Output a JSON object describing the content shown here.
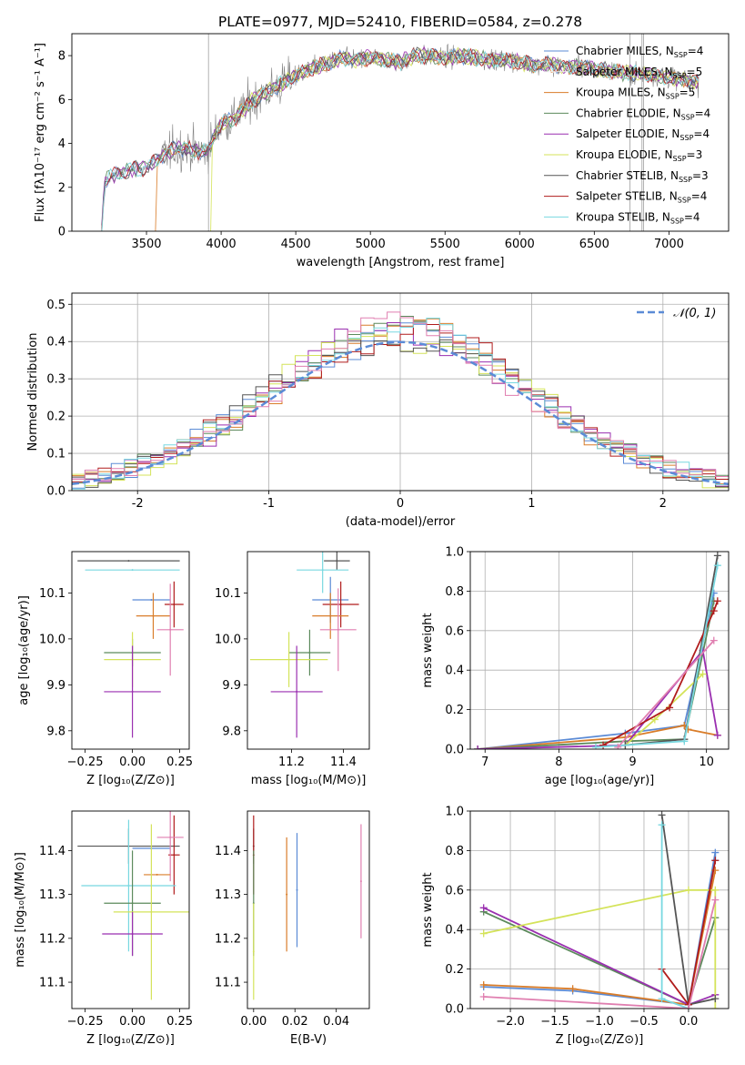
{
  "figure_title": "PLATE=0977, MJD=52410, FIBERID=0584, z=0.278",
  "colors": {
    "Chabrier MILES": "#5b8bd6",
    "Salpeter MILES": "#f0f0f0",
    "Kroupa MILES": "#d97d2a",
    "Chabrier ELODIE": "#5c8a5c",
    "Salpeter ELODIE": "#9a2fb0",
    "Kroupa ELODIE": "#d4e35a",
    "Chabrier STELIB": "#555555",
    "Salpeter STELIB": "#b01c1c",
    "Kroupa STELIB": "#78d8e0",
    "pink": "#e07fb0",
    "data_spectrum": "#808080",
    "normal_curve": "#5b8bd6"
  },
  "chart_data": [
    {
      "id": "spectrum",
      "type": "line",
      "title": "PLATE=0977, MJD=52410, FIBERID=0584, z=0.278",
      "xlabel": "wavelength [Angstrom, rest frame]",
      "ylabel": "Flux [fλ10⁻¹⁷ erg cm⁻² s⁻¹ A⁻¹]",
      "xlim": [
        3000,
        7400
      ],
      "ylim": [
        0,
        9
      ],
      "xticks": [
        3500,
        4000,
        4500,
        5000,
        5500,
        6000,
        6500,
        7000
      ],
      "yticks": [
        0,
        2,
        4,
        6,
        8
      ],
      "legend_position": "top-right",
      "legend": [
        {
          "label": "Chabrier MILES, N",
          "sub": "SSP",
          "tail": "=4",
          "color": "#5b8bd6"
        },
        {
          "label": "Salpeter MILES, N",
          "sub": "SSP",
          "tail": "=5",
          "color": "#f0f0f0"
        },
        {
          "label": "Kroupa MILES, N",
          "sub": "SSP",
          "tail": "=5",
          "color": "#d97d2a"
        },
        {
          "label": "Chabrier ELODIE, N",
          "sub": "SSP",
          "tail": "=4",
          "color": "#5c8a5c"
        },
        {
          "label": "Salpeter ELODIE, N",
          "sub": "SSP",
          "tail": "=4",
          "color": "#9a2fb0"
        },
        {
          "label": "Kroupa ELODIE, N",
          "sub": "SSP",
          "tail": "=3",
          "color": "#d4e35a"
        },
        {
          "label": "Chabrier STELIB, N",
          "sub": "SSP",
          "tail": "=3",
          "color": "#555555"
        },
        {
          "label": "Salpeter STELIB, N",
          "sub": "SSP",
          "tail": "=4",
          "color": "#b01c1c"
        },
        {
          "label": "Kroupa STELIB, N",
          "sub": "SSP",
          "tail": "=4",
          "color": "#78d8e0"
        }
      ],
      "continuum": [
        [
          3200,
          0
        ],
        [
          3220,
          2.3
        ],
        [
          3300,
          2.6
        ],
        [
          3400,
          2.8
        ],
        [
          3500,
          2.9
        ],
        [
          3600,
          3.4
        ],
        [
          3700,
          3.8
        ],
        [
          3800,
          3.7
        ],
        [
          3900,
          3.6
        ],
        [
          4000,
          4.9
        ],
        [
          4100,
          5.2
        ],
        [
          4200,
          5.9
        ],
        [
          4300,
          6.3
        ],
        [
          4400,
          6.7
        ],
        [
          4500,
          7.1
        ],
        [
          4600,
          7.4
        ],
        [
          4700,
          7.6
        ],
        [
          4800,
          7.9
        ],
        [
          4900,
          7.8
        ],
        [
          5000,
          7.9
        ],
        [
          5100,
          7.8
        ],
        [
          5200,
          7.7
        ],
        [
          5300,
          8.0
        ],
        [
          5400,
          8.0
        ],
        [
          5500,
          7.9
        ],
        [
          5600,
          8.0
        ],
        [
          5700,
          7.9
        ],
        [
          5800,
          7.8
        ],
        [
          5900,
          7.8
        ],
        [
          6000,
          7.7
        ],
        [
          6100,
          7.6
        ],
        [
          6200,
          7.6
        ],
        [
          6300,
          7.5
        ],
        [
          6400,
          7.5
        ],
        [
          6500,
          7.4
        ],
        [
          6600,
          7.3
        ],
        [
          6700,
          7.2
        ],
        [
          6800,
          7.2
        ],
        [
          6900,
          7.1
        ],
        [
          7000,
          7.0
        ],
        [
          7100,
          6.9
        ],
        [
          7200,
          6.8
        ]
      ]
    },
    {
      "id": "residuals",
      "type": "histogram",
      "xlabel": "(data-model)/error",
      "ylabel": "Normed distribution",
      "xlim": [
        -2.5,
        2.5
      ],
      "ylim": [
        0,
        0.53
      ],
      "xticks": [
        -2,
        -1,
        0,
        1,
        2
      ],
      "yticks": [
        0.0,
        0.1,
        0.2,
        0.3,
        0.4,
        0.5
      ],
      "grid": true,
      "legend_position": "top-right",
      "legend": [
        {
          "label": "𝒩(0, 1)",
          "color": "#5b8bd6",
          "style": "dashed"
        }
      ]
    },
    {
      "id": "age-vs-Z",
      "type": "errorbar",
      "xlabel": "Z [log₁₀(Z/Z⊙)]",
      "ylabel": "age  [log₁₀(age/yr)]",
      "xlim": [
        -0.32,
        0.3
      ],
      "ylim": [
        9.76,
        10.19
      ],
      "xticks": [
        -0.25,
        0.0,
        0.25
      ],
      "xticklabels": [
        "−0.25",
        "0.00",
        "0.25"
      ],
      "yticks": [
        9.8,
        9.9,
        10.0,
        10.1
      ],
      "points": [
        {
          "color": "#555555",
          "x": -0.02,
          "xerr": 0.27,
          "y": 10.17,
          "yerr": 0.0
        },
        {
          "color": "#78d8e0",
          "x": 0.0,
          "xerr": 0.25,
          "y": 10.15,
          "yerr": 0.0
        },
        {
          "color": "#5b8bd6",
          "x": 0.1,
          "xerr": 0.1,
          "y": 10.085,
          "yerr": 0.0
        },
        {
          "color": "#b01c1c",
          "x": 0.22,
          "xerr": 0.05,
          "y": 10.075,
          "yerr": 0.05
        },
        {
          "color": "#d97d2a",
          "x": 0.11,
          "xerr": 0.09,
          "y": 10.05,
          "yerr": 0.05
        },
        {
          "color": "#e07fb0",
          "x": 0.2,
          "xerr": 0.07,
          "y": 10.02,
          "yerr": 0.1
        },
        {
          "color": "#5c8a5c",
          "x": 0.0,
          "xerr": 0.15,
          "y": 9.97,
          "yerr": 0.03
        },
        {
          "color": "#d4e35a",
          "x": 0.0,
          "xerr": 0.15,
          "y": 9.955,
          "yerr": 0.06
        },
        {
          "color": "#9a2fb0",
          "x": 0.0,
          "xerr": 0.15,
          "y": 9.885,
          "yerr": 0.1
        }
      ]
    },
    {
      "id": "age-vs-mass",
      "type": "errorbar",
      "xlabel": "mass [log₁₀(M/M⊙)]",
      "ylabel": "",
      "xlim": [
        11.03,
        11.5
      ],
      "ylim": [
        9.76,
        10.19
      ],
      "xticks": [
        11.2,
        11.4
      ],
      "yticks": [
        9.8,
        9.9,
        10.0,
        10.1
      ],
      "points": [
        {
          "color": "#555555",
          "x": 11.375,
          "xerr": 0.05,
          "y": 10.17,
          "yerr": 0.02
        },
        {
          "color": "#78d8e0",
          "x": 11.32,
          "xerr": 0.1,
          "y": 10.15,
          "yerr": 0.05
        },
        {
          "color": "#5b8bd6",
          "x": 11.35,
          "xerr": 0.07,
          "y": 10.085,
          "yerr": 0.05
        },
        {
          "color": "#b01c1c",
          "x": 11.39,
          "xerr": 0.07,
          "y": 10.075,
          "yerr": 0.05
        },
        {
          "color": "#d97d2a",
          "x": 11.35,
          "xerr": 0.07,
          "y": 10.05,
          "yerr": 0.05
        },
        {
          "color": "#e07fb0",
          "x": 11.38,
          "xerr": 0.07,
          "y": 10.02,
          "yerr": 0.09
        },
        {
          "color": "#5c8a5c",
          "x": 11.27,
          "xerr": 0.08,
          "y": 9.97,
          "yerr": 0.05
        },
        {
          "color": "#d4e35a",
          "x": 11.19,
          "xerr": 0.15,
          "y": 9.955,
          "yerr": 0.06
        },
        {
          "color": "#9a2fb0",
          "x": 11.22,
          "xerr": 0.1,
          "y": 9.885,
          "yerr": 0.1
        }
      ]
    },
    {
      "id": "massweight-vs-age",
      "type": "line",
      "xlabel": "age  [log₁₀(age/yr)]",
      "ylabel": "mass weight",
      "xlim": [
        6.8,
        10.3
      ],
      "ylim": [
        0,
        1
      ],
      "xticks": [
        7,
        8,
        9,
        10
      ],
      "yticks": [
        0.0,
        0.2,
        0.4,
        0.6,
        0.8,
        1.0
      ],
      "grid": true,
      "series": [
        {
          "color": "#5b8bd6",
          "x": [
            6.9,
            8.9,
            9.7,
            10.1
          ],
          "y": [
            0.0,
            0.08,
            0.12,
            0.79
          ]
        },
        {
          "color": "#d97d2a",
          "x": [
            6.9,
            8.9,
            9.7,
            9.75,
            10.15
          ],
          "y": [
            0.0,
            0.06,
            0.12,
            0.1,
            0.07
          ]
        },
        {
          "color": "#5c8a5c",
          "x": [
            6.9,
            8.9,
            9.7,
            10.1
          ],
          "y": [
            0.0,
            0.04,
            0.05,
            0.75
          ]
        },
        {
          "color": "#9a2fb0",
          "x": [
            6.9,
            8.9,
            9.95,
            10.15
          ],
          "y": [
            0.0,
            0.02,
            0.5,
            0.07
          ]
        },
        {
          "color": "#d4e35a",
          "x": [
            8.9,
            9.3,
            9.95
          ],
          "y": [
            0.02,
            0.15,
            0.38
          ]
        },
        {
          "color": "#555555",
          "x": [
            8.9,
            9.7,
            10.15
          ],
          "y": [
            0.02,
            0.05,
            0.98
          ]
        },
        {
          "color": "#b01c1c",
          "x": [
            8.6,
            9.5,
            10.1,
            10.15
          ],
          "y": [
            0.02,
            0.21,
            0.7,
            0.75
          ]
        },
        {
          "color": "#78d8e0",
          "x": [
            8.5,
            9.7,
            10.15
          ],
          "y": [
            0.01,
            0.04,
            0.93
          ]
        },
        {
          "color": "#e07fb0",
          "x": [
            8.8,
            10.1
          ],
          "y": [
            0.01,
            0.55
          ]
        }
      ]
    },
    {
      "id": "mass-vs-Z",
      "type": "errorbar",
      "xlabel": "Z [log₁₀(Z/Z⊙)]",
      "ylabel": "mass [log₁₀(M/M⊙)]",
      "xlim": [
        -0.32,
        0.3
      ],
      "ylim": [
        11.04,
        11.49
      ],
      "xticks": [
        -0.25,
        0.0,
        0.25
      ],
      "xticklabels": [
        "−0.25",
        "0.00",
        "0.25"
      ],
      "yticks": [
        11.1,
        11.2,
        11.3,
        11.4
      ],
      "points": [
        {
          "color": "#555555",
          "x": -0.02,
          "xerr": 0.27,
          "y": 11.41,
          "yerr": 0.04
        },
        {
          "color": "#5b8bd6",
          "x": 0.1,
          "xerr": 0.1,
          "y": 11.405,
          "yerr": 0.0
        },
        {
          "color": "#b01c1c",
          "x": 0.22,
          "xerr": 0.03,
          "y": 11.39,
          "yerr": 0.09
        },
        {
          "color": "#e07fb0",
          "x": 0.2,
          "xerr": 0.07,
          "y": 11.43,
          "yerr": 0.1
        },
        {
          "color": "#d97d2a",
          "x": 0.13,
          "xerr": 0.07,
          "y": 11.345,
          "yerr": 0.0
        },
        {
          "color": "#78d8e0",
          "x": -0.02,
          "xerr": 0.25,
          "y": 11.32,
          "yerr": 0.15
        },
        {
          "color": "#5c8a5c",
          "x": 0.0,
          "xerr": 0.15,
          "y": 11.28,
          "yerr": 0.12
        },
        {
          "color": "#d4e35a",
          "x": 0.1,
          "xerr": 0.2,
          "y": 11.26,
          "yerr": 0.2
        },
        {
          "color": "#9a2fb0",
          "x": 0.0,
          "xerr": 0.16,
          "y": 11.21,
          "yerr": 0.05
        }
      ]
    },
    {
      "id": "mass-vs-EBV",
      "type": "errorbar",
      "xlabel": "E(B-V)",
      "ylabel": "",
      "xlim": [
        -0.003,
        0.056
      ],
      "ylim": [
        11.04,
        11.49
      ],
      "xticks": [
        0.0,
        0.02,
        0.04
      ],
      "xticklabels": [
        "0.00",
        "0.02",
        "0.04"
      ],
      "yticks": [
        11.1,
        11.2,
        11.3,
        11.4
      ],
      "points": [
        {
          "color": "#555555",
          "x": 0.0,
          "xerr": 0.0,
          "y": 11.41,
          "yerr": 0.04
        },
        {
          "color": "#b01c1c",
          "x": 0.0,
          "xerr": 0.0,
          "y": 11.39,
          "yerr": 0.09
        },
        {
          "color": "#5c8a5c",
          "x": 0.0,
          "xerr": 0.0,
          "y": 11.28,
          "yerr": 0.12
        },
        {
          "color": "#d4e35a",
          "x": 0.0,
          "xerr": 0.0,
          "y": 11.17,
          "yerr": 0.11
        },
        {
          "color": "#d97d2a",
          "x": 0.016,
          "xerr": 0.0,
          "y": 11.3,
          "yerr": 0.13
        },
        {
          "color": "#5b8bd6",
          "x": 0.021,
          "xerr": 0.0,
          "y": 11.31,
          "yerr": 0.13
        },
        {
          "color": "#e07fb0",
          "x": 0.052,
          "xerr": 0.0,
          "y": 11.33,
          "yerr": 0.13
        }
      ]
    },
    {
      "id": "massweight-vs-Z",
      "type": "line",
      "xlabel": "Z [log₁₀(Z/Z⊙)]",
      "ylabel": "mass weight",
      "xlim": [
        -2.45,
        0.45
      ],
      "ylim": [
        0,
        1
      ],
      "xticks": [
        -2.0,
        -1.5,
        -1.0,
        -0.5,
        0.0
      ],
      "xticklabels": [
        "−2.0",
        "−1.5",
        "−1.0",
        "−0.5",
        "0.0"
      ],
      "yticks": [
        0.0,
        0.2,
        0.4,
        0.6,
        0.8,
        1.0
      ],
      "grid": true,
      "series": [
        {
          "color": "#5b8bd6",
          "x": [
            -2.3,
            -1.3,
            0.0,
            0.3,
            0.3
          ],
          "y": [
            0.11,
            0.09,
            0.02,
            0.79,
            0.75
          ]
        },
        {
          "color": "#d97d2a",
          "x": [
            -2.3,
            -1.3,
            0.0,
            0.3
          ],
          "y": [
            0.12,
            0.1,
            0.02,
            0.7
          ]
        },
        {
          "color": "#5c8a5c",
          "x": [
            -2.3,
            0.0,
            0.3
          ],
          "y": [
            0.49,
            0.02,
            0.46
          ]
        },
        {
          "color": "#9a2fb0",
          "x": [
            -2.3,
            0.0,
            0.3
          ],
          "y": [
            0.51,
            0.02,
            0.07
          ]
        },
        {
          "color": "#d4e35a",
          "x": [
            -2.3,
            0.0,
            0.3,
            0.3
          ],
          "y": [
            0.38,
            0.6,
            0.6,
            0.0
          ]
        },
        {
          "color": "#555555",
          "x": [
            -0.3,
            0.0,
            0.3
          ],
          "y": [
            0.98,
            0.02,
            0.05
          ]
        },
        {
          "color": "#b01c1c",
          "x": [
            -0.3,
            0.0,
            0.3
          ],
          "y": [
            0.2,
            0.02,
            0.75
          ]
        },
        {
          "color": "#78d8e0",
          "x": [
            -0.3,
            -0.3,
            0.0
          ],
          "y": [
            0.93,
            0.05,
            0.0
          ]
        },
        {
          "color": "#e07fb0",
          "x": [
            -2.3,
            0.0,
            0.3
          ],
          "y": [
            0.06,
            0.0,
            0.55
          ]
        }
      ]
    }
  ]
}
